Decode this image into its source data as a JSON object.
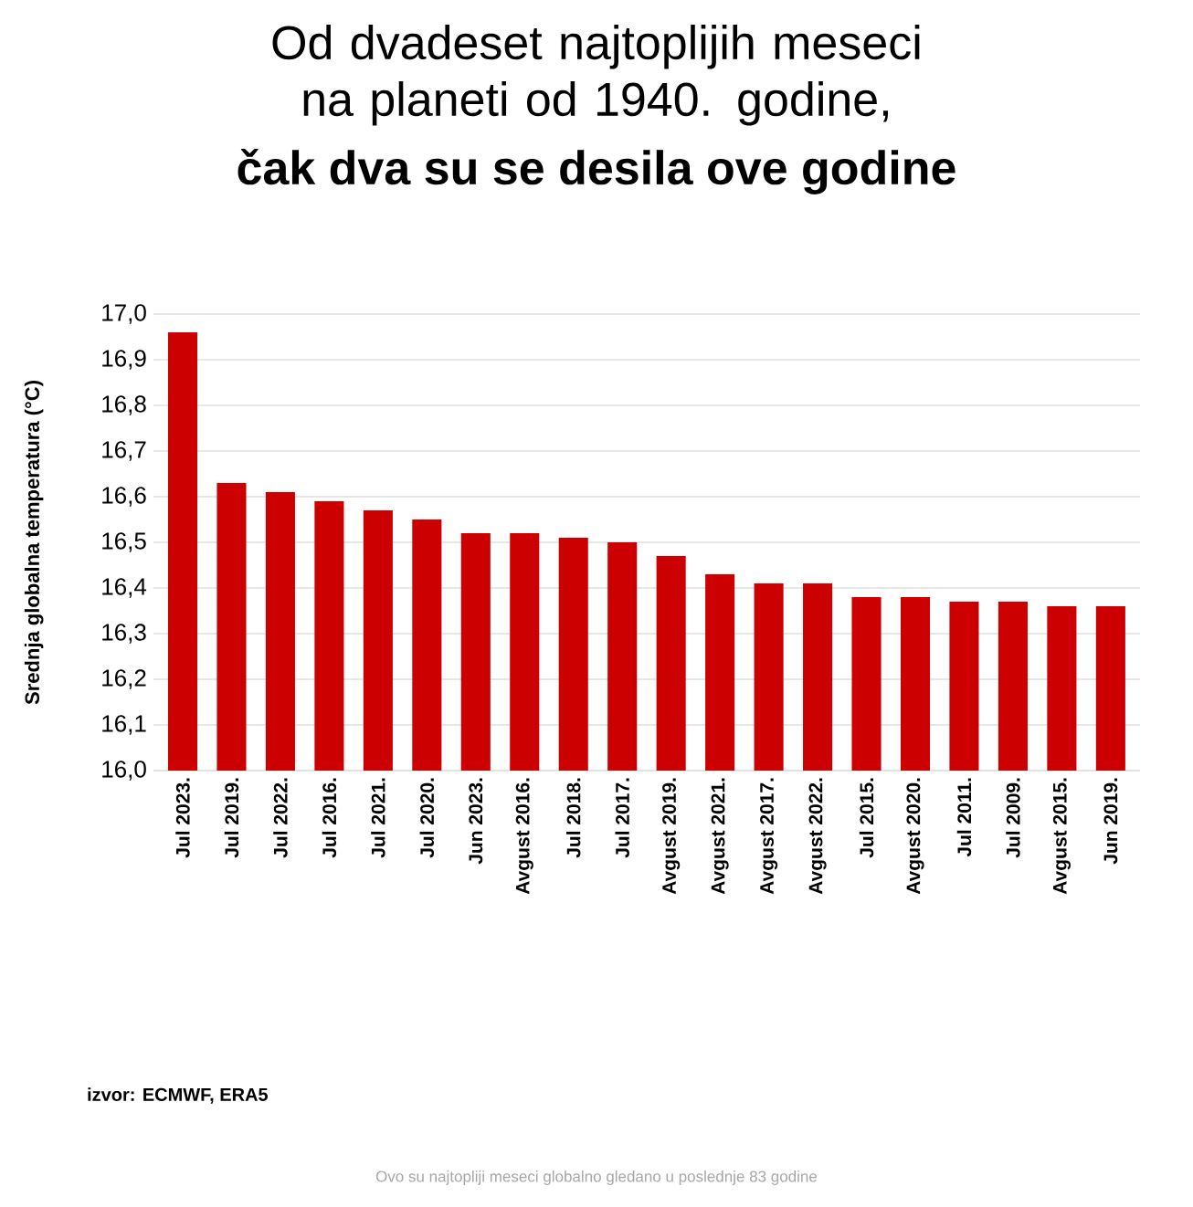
{
  "chart_data": {
    "type": "bar",
    "title": "Od dvadeset najtoplijih meseci na planeti od 1940. godine,",
    "subtitle": "čak dva su se desila ove godine",
    "ylabel": "Srednja globalna temperatura (°C)",
    "categories": [
      "Jul 2023.",
      "Jul 2019.",
      "Jul 2022.",
      "Jul 2016.",
      "Jul 2021.",
      "Jul 2020.",
      "Jun 2023.",
      "Avgust 2016.",
      "Jul 2018.",
      "Jul 2017.",
      "Avgust 2019.",
      "Avgust 2021.",
      "Avgust 2017.",
      "Avgust 2022.",
      "Jul 2015.",
      "Avgust 2020.",
      "Jul 2011.",
      "Jul 2009.",
      "Avgust 2015.",
      "Jun 2019."
    ],
    "values": [
      16.96,
      16.63,
      16.61,
      16.59,
      16.57,
      16.55,
      16.52,
      16.52,
      16.51,
      16.5,
      16.47,
      16.43,
      16.41,
      16.41,
      16.38,
      16.38,
      16.37,
      16.37,
      16.36,
      16.36
    ],
    "color": "#cc0000",
    "ylim": [
      16.0,
      17.0
    ],
    "yticks": [
      {
        "value": 16.0,
        "label": "16,0"
      },
      {
        "value": 16.1,
        "label": "16,1"
      },
      {
        "value": 16.2,
        "label": "16,2"
      },
      {
        "value": 16.3,
        "label": "16,3"
      },
      {
        "value": 16.4,
        "label": "16,4"
      },
      {
        "value": 16.5,
        "label": "16,5"
      },
      {
        "value": 16.6,
        "label": "16,6"
      },
      {
        "value": 16.7,
        "label": "16,7"
      },
      {
        "value": 16.8,
        "label": "16,8"
      },
      {
        "value": 16.9,
        "label": "16,9"
      },
      {
        "value": 17.0,
        "label": "17,0"
      }
    ],
    "grid": "y",
    "annotations": [
      "izvor: ECMWF, ERA5",
      "Ovo su najtopliji meseci globalno gledano u poslednje 83 godine"
    ]
  }
}
